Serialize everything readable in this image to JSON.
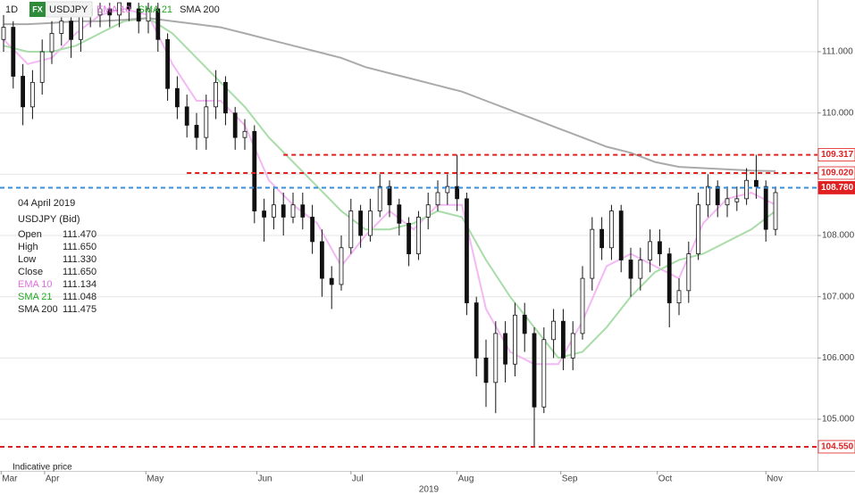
{
  "chart_data": {
    "type": "candlestick",
    "interval": "1D",
    "badge": "FX",
    "symbol": "USDJPY",
    "x": [
      -10,
      -8,
      -6,
      -4,
      -2,
      0,
      2,
      4,
      6,
      8,
      10,
      12,
      14,
      16,
      18,
      20,
      22,
      24,
      26,
      28,
      30,
      32,
      34,
      36,
      38,
      40,
      42,
      44,
      46,
      48,
      50,
      52,
      54,
      56,
      58,
      60,
      62,
      64,
      66,
      68,
      70,
      72,
      74,
      76,
      78,
      80,
      82,
      84,
      86,
      88,
      90,
      92,
      94,
      96,
      98,
      100,
      102,
      104,
      106,
      108,
      110,
      112,
      114,
      116,
      118,
      120,
      122,
      124,
      126,
      128,
      130,
      132,
      134,
      136,
      138,
      140,
      142,
      144,
      146,
      148,
      150
    ],
    "ohlc": [
      [
        111.2,
        111.6,
        111.0,
        111.4
      ],
      [
        111.4,
        111.5,
        110.4,
        110.6
      ],
      [
        110.6,
        110.8,
        109.8,
        110.1
      ],
      [
        110.1,
        110.7,
        109.9,
        110.5
      ],
      [
        110.5,
        111.2,
        110.3,
        111.0
      ],
      [
        111.0,
        111.5,
        110.8,
        111.3
      ],
      [
        111.3,
        111.7,
        111.1,
        111.5
      ],
      [
        111.5,
        111.7,
        110.9,
        111.2
      ],
      [
        111.2,
        111.8,
        111.0,
        111.7
      ],
      [
        111.7,
        111.8,
        111.4,
        111.6
      ],
      [
        111.6,
        111.8,
        111.4,
        111.7
      ],
      [
        111.7,
        111.8,
        111.4,
        111.6
      ],
      [
        111.6,
        111.8,
        111.4,
        111.8
      ],
      [
        111.8,
        111.8,
        111.5,
        111.7
      ],
      [
        111.7,
        111.8,
        111.3,
        111.5
      ],
      [
        111.5,
        111.8,
        111.3,
        111.7
      ],
      [
        111.7,
        111.8,
        111.0,
        111.2
      ],
      [
        111.2,
        111.3,
        110.2,
        110.4
      ],
      [
        110.4,
        110.6,
        109.9,
        110.1
      ],
      [
        110.1,
        110.3,
        109.6,
        109.8
      ],
      [
        109.8,
        110.0,
        109.4,
        109.6
      ],
      [
        109.6,
        110.3,
        109.4,
        110.1
      ],
      [
        110.1,
        110.7,
        109.9,
        110.5
      ],
      [
        110.5,
        110.6,
        109.8,
        110.0
      ],
      [
        110.0,
        110.1,
        109.4,
        109.6
      ],
      [
        109.6,
        109.9,
        109.4,
        109.7
      ],
      [
        109.7,
        109.8,
        108.2,
        108.4
      ],
      [
        108.4,
        108.6,
        107.9,
        108.3
      ],
      [
        108.3,
        108.8,
        108.1,
        108.5
      ],
      [
        108.5,
        108.7,
        108.0,
        108.3
      ],
      [
        108.3,
        108.7,
        108.2,
        108.5
      ],
      [
        108.5,
        108.7,
        108.1,
        108.3
      ],
      [
        108.3,
        108.5,
        107.7,
        107.9
      ],
      [
        107.9,
        108.1,
        107.0,
        107.3
      ],
      [
        107.3,
        107.5,
        106.8,
        107.2
      ],
      [
        107.2,
        108.0,
        107.1,
        107.8
      ],
      [
        107.8,
        108.6,
        107.7,
        108.4
      ],
      [
        108.4,
        108.5,
        107.8,
        108.0
      ],
      [
        108.0,
        108.6,
        107.9,
        108.4
      ],
      [
        108.4,
        109.0,
        108.3,
        108.8
      ],
      [
        108.8,
        108.9,
        108.3,
        108.5
      ],
      [
        108.5,
        108.6,
        108.0,
        108.2
      ],
      [
        108.2,
        108.3,
        107.5,
        107.7
      ],
      [
        107.7,
        108.4,
        107.6,
        108.3
      ],
      [
        108.3,
        108.7,
        108.1,
        108.5
      ],
      [
        108.5,
        108.9,
        108.4,
        108.7
      ],
      [
        108.7,
        109.0,
        108.5,
        108.8
      ],
      [
        108.8,
        109.317,
        108.4,
        108.6
      ],
      [
        108.6,
        108.7,
        106.7,
        106.9
      ],
      [
        106.9,
        107.0,
        105.7,
        106.0
      ],
      [
        106.0,
        106.3,
        105.2,
        105.6
      ],
      [
        105.6,
        106.6,
        105.1,
        106.4
      ],
      [
        106.4,
        106.6,
        105.6,
        105.9
      ],
      [
        105.9,
        106.9,
        105.7,
        106.7
      ],
      [
        106.7,
        106.9,
        106.1,
        106.4
      ],
      [
        106.4,
        106.5,
        104.55,
        105.2
      ],
      [
        105.2,
        106.5,
        105.1,
        106.3
      ],
      [
        106.3,
        106.8,
        106.0,
        106.6
      ],
      [
        106.6,
        106.8,
        105.8,
        106.0
      ],
      [
        106.0,
        106.6,
        105.8,
        106.4
      ],
      [
        106.4,
        107.5,
        106.3,
        107.3
      ],
      [
        107.3,
        108.3,
        107.1,
        108.1
      ],
      [
        108.1,
        108.3,
        107.6,
        107.8
      ],
      [
        107.8,
        108.5,
        107.6,
        108.4
      ],
      [
        108.4,
        108.5,
        107.4,
        107.6
      ],
      [
        107.6,
        107.8,
        107.0,
        107.3
      ],
      [
        107.3,
        107.8,
        107.1,
        107.6
      ],
      [
        107.6,
        108.1,
        107.4,
        107.9
      ],
      [
        107.9,
        108.1,
        107.5,
        107.7
      ],
      [
        107.7,
        107.8,
        106.5,
        106.9
      ],
      [
        106.9,
        107.3,
        106.7,
        107.1
      ],
      [
        107.1,
        107.9,
        106.9,
        107.7
      ],
      [
        107.7,
        108.7,
        107.6,
        108.5
      ],
      [
        108.5,
        109.0,
        108.3,
        108.8
      ],
      [
        108.8,
        108.9,
        108.3,
        108.5
      ],
      [
        108.5,
        108.8,
        108.3,
        108.6
      ],
      [
        108.55,
        108.8,
        108.4,
        108.6
      ],
      [
        108.6,
        109.1,
        108.5,
        108.9
      ],
      [
        108.9,
        109.317,
        108.6,
        108.8
      ],
      [
        108.8,
        108.9,
        107.9,
        108.1
      ],
      [
        108.1,
        108.8,
        108.0,
        108.7
      ]
    ],
    "series": [
      {
        "name": "EMA 10",
        "color": "#e070e0",
        "line_color": "#f4b8f4",
        "x": [
          -10,
          -5,
          0,
          5,
          10,
          15,
          20,
          25,
          30,
          35,
          40,
          45,
          50,
          55,
          60,
          65,
          70,
          75,
          80,
          85,
          90,
          95,
          100,
          105,
          110,
          115,
          120,
          125,
          130,
          135,
          140,
          145,
          150
        ],
        "values": [
          111.2,
          110.8,
          110.9,
          111.3,
          111.6,
          111.7,
          111.6,
          110.8,
          110.2,
          110.2,
          109.8,
          108.9,
          108.5,
          108.2,
          107.5,
          108.0,
          108.4,
          108.1,
          108.5,
          108.5,
          106.8,
          106.1,
          105.9,
          105.9,
          106.6,
          107.5,
          107.7,
          107.5,
          107.3,
          108.2,
          108.6,
          108.7,
          108.5
        ]
      },
      {
        "name": "SMA 21",
        "color": "#22a822",
        "line_color": "#a8dca8",
        "x": [
          -10,
          -5,
          0,
          5,
          10,
          15,
          20,
          25,
          30,
          35,
          40,
          45,
          50,
          55,
          60,
          65,
          70,
          75,
          80,
          85,
          90,
          95,
          100,
          105,
          110,
          115,
          120,
          125,
          130,
          135,
          140,
          145,
          150
        ],
        "values": [
          111.1,
          111.0,
          111.0,
          111.1,
          111.3,
          111.5,
          111.55,
          111.3,
          110.9,
          110.5,
          110.1,
          109.6,
          109.2,
          108.8,
          108.4,
          108.1,
          108.1,
          108.2,
          108.4,
          108.3,
          107.6,
          107.0,
          106.5,
          106.0,
          106.1,
          106.5,
          107.0,
          107.4,
          107.6,
          107.7,
          107.9,
          108.1,
          108.4
        ]
      },
      {
        "name": "SMA 200",
        "color": "#222222",
        "line_color": "#aaaaaa",
        "x": [
          -10,
          -5,
          0,
          5,
          10,
          15,
          20,
          25,
          30,
          35,
          40,
          45,
          50,
          55,
          60,
          65,
          70,
          75,
          80,
          85,
          90,
          95,
          100,
          105,
          110,
          115,
          120,
          125,
          130,
          135,
          140,
          145,
          150
        ],
        "values": [
          111.45,
          111.45,
          111.47,
          111.5,
          111.5,
          111.52,
          111.55,
          111.5,
          111.45,
          111.4,
          111.3,
          111.2,
          111.1,
          111.0,
          110.9,
          110.75,
          110.65,
          110.55,
          110.45,
          110.35,
          110.2,
          110.05,
          109.9,
          109.75,
          109.6,
          109.45,
          109.35,
          109.2,
          109.12,
          109.1,
          109.08,
          109.06,
          109.05
        ]
      }
    ],
    "levels": [
      {
        "value": 109.317,
        "label": "109.317",
        "color": "#e02020",
        "x_start": 48
      },
      {
        "value": 109.02,
        "label": "109.020",
        "color": "#e02020",
        "x_start": 28
      },
      {
        "value": 108.78,
        "label": "108.780",
        "color": "#3a8fd8",
        "highlight": true
      },
      {
        "value": 104.55,
        "label": "104.550",
        "color": "#e02020"
      }
    ],
    "xlim": [
      -10.74,
      158.7
    ],
    "ylim": [
      104.156,
      111.845
    ],
    "xticks": [
      {
        "value": -10.5,
        "label": "Mar"
      },
      {
        "value": -1.5,
        "label": "Apr"
      },
      {
        "value": 19.5,
        "label": "May"
      },
      {
        "value": 42.5,
        "label": "Jun"
      },
      {
        "value": 62,
        "label": "Jul"
      },
      {
        "value": 84,
        "label": "Aug"
      },
      {
        "value": 105.5,
        "label": "Sep"
      },
      {
        "value": 125.5,
        "label": "Oct"
      },
      {
        "value": 148,
        "label": "Nov"
      }
    ],
    "xlabel": "2019",
    "yticks": [
      {
        "value": 111,
        "label": "111.000"
      },
      {
        "value": 110,
        "label": "110.000"
      },
      {
        "value": 109,
        "label": "109.000"
      },
      {
        "value": 108,
        "label": "108.000"
      },
      {
        "value": 107,
        "label": "107.000"
      },
      {
        "value": 106,
        "label": "106.000"
      },
      {
        "value": 105,
        "label": "105.000"
      }
    ],
    "grid": true,
    "info": {
      "date": "04 April 2019",
      "symbol": "USDJPY (Bid)",
      "rows": [
        [
          "Open",
          "111.470"
        ],
        [
          "High",
          "111.650"
        ],
        [
          "Low",
          "111.330"
        ],
        [
          "Close",
          "111.650"
        ],
        [
          "EMA 10",
          "111.134"
        ],
        [
          "SMA 21",
          "111.048"
        ],
        [
          "SMA 200",
          "111.475"
        ]
      ]
    },
    "footnote": "Indicative price"
  }
}
